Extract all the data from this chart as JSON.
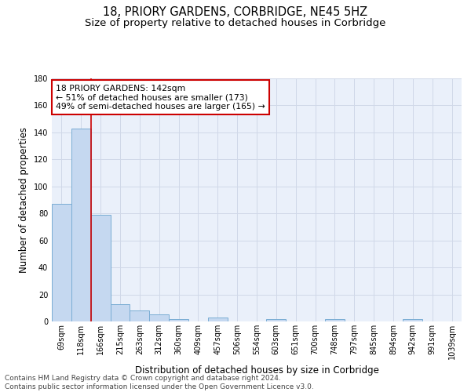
{
  "title": "18, PRIORY GARDENS, CORBRIDGE, NE45 5HZ",
  "subtitle": "Size of property relative to detached houses in Corbridge",
  "xlabel": "Distribution of detached houses by size in Corbridge",
  "ylabel": "Number of detached properties",
  "bin_labels": [
    "69sqm",
    "118sqm",
    "166sqm",
    "215sqm",
    "263sqm",
    "312sqm",
    "360sqm",
    "409sqm",
    "457sqm",
    "506sqm",
    "554sqm",
    "603sqm",
    "651sqm",
    "700sqm",
    "748sqm",
    "797sqm",
    "845sqm",
    "894sqm",
    "942sqm",
    "991sqm",
    "1039sqm"
  ],
  "bar_values": [
    87,
    143,
    79,
    13,
    8,
    5,
    2,
    0,
    3,
    0,
    0,
    2,
    0,
    0,
    2,
    0,
    0,
    0,
    2,
    0,
    0
  ],
  "bar_color": "#c5d8f0",
  "bar_edge_color": "#7aadd4",
  "vline_color": "#cc0000",
  "vline_x_idx": 1.5,
  "annotation_text": "18 PRIORY GARDENS: 142sqm\n← 51% of detached houses are smaller (173)\n49% of semi-detached houses are larger (165) →",
  "annotation_box_color": "#ffffff",
  "annotation_box_edge": "#cc0000",
  "ylim": [
    0,
    180
  ],
  "yticks": [
    0,
    20,
    40,
    60,
    80,
    100,
    120,
    140,
    160,
    180
  ],
  "bg_color": "#eaf0fa",
  "grid_color": "#d0d8e8",
  "footer": "Contains HM Land Registry data © Crown copyright and database right 2024.\nContains public sector information licensed under the Open Government Licence v3.0.",
  "title_fontsize": 10.5,
  "subtitle_fontsize": 9.5,
  "xlabel_fontsize": 8.5,
  "ylabel_fontsize": 8.5,
  "tick_fontsize": 7,
  "annotation_fontsize": 7.8,
  "footer_fontsize": 6.5
}
